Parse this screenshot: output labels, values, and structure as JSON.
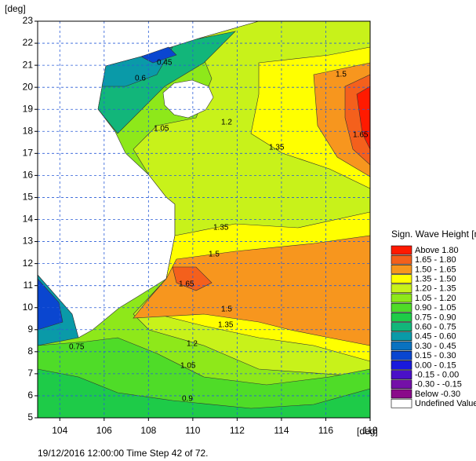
{
  "chart_data": {
    "type": "contour",
    "y_label": "[deg]",
    "x_label": "[deg]",
    "xlim": [
      103,
      118
    ],
    "ylim": [
      5,
      23
    ],
    "xticks": [
      104,
      106,
      108,
      110,
      112,
      114,
      116,
      118
    ],
    "yticks": [
      5,
      6,
      7,
      8,
      9,
      10,
      11,
      12,
      13,
      14,
      15,
      16,
      17,
      18,
      19,
      20,
      21,
      22,
      23
    ],
    "grid": true,
    "grid_color": "#2a5cd8",
    "land_color": "#ffffff",
    "contour_labels": [
      0.6,
      0.45,
      1.05,
      1.2,
      1.35,
      1.5,
      1.65,
      1.35,
      1.5,
      1.65,
      1.2,
      1.05,
      0.9,
      0.75,
      1.5,
      1.35
    ],
    "legend": {
      "title": "Sign. Wave Height [m]",
      "entries": [
        {
          "label": "Above 1.80",
          "color": "#ff1a00"
        },
        {
          "label": "1.65 - 1.80",
          "color": "#f4601c"
        },
        {
          "label": "1.50 - 1.65",
          "color": "#f7961e"
        },
        {
          "label": "1.35 - 1.50",
          "color": "#ffff00"
        },
        {
          "label": "1.20 - 1.35",
          "color": "#c8f21a"
        },
        {
          "label": "1.05 - 1.20",
          "color": "#8ee81a"
        },
        {
          "label": "0.90 - 1.05",
          "color": "#4fdc28"
        },
        {
          "label": "0.75 - 0.90",
          "color": "#1ecb48"
        },
        {
          "label": "0.60 - 0.75",
          "color": "#12b67a"
        },
        {
          "label": "0.45 - 0.60",
          "color": "#0a9aa8"
        },
        {
          "label": "0.30 - 0.45",
          "color": "#0a72c0"
        },
        {
          "label": "0.15 - 0.30",
          "color": "#0a46d0"
        },
        {
          "label": "0.00 - 0.15",
          "color": "#1a1adc"
        },
        {
          "label": "-0.15 - 0.00",
          "color": "#4a10c8"
        },
        {
          "label": "-0.30 - -0.15",
          "color": "#7410a8"
        },
        {
          "label": "Below -0.30",
          "color": "#8a0a8a"
        },
        {
          "label": "Undefined Value",
          "color": "#ffffff"
        }
      ]
    },
    "footer": "19/12/2016 12:00:00  Time Step 42 of 72."
  }
}
